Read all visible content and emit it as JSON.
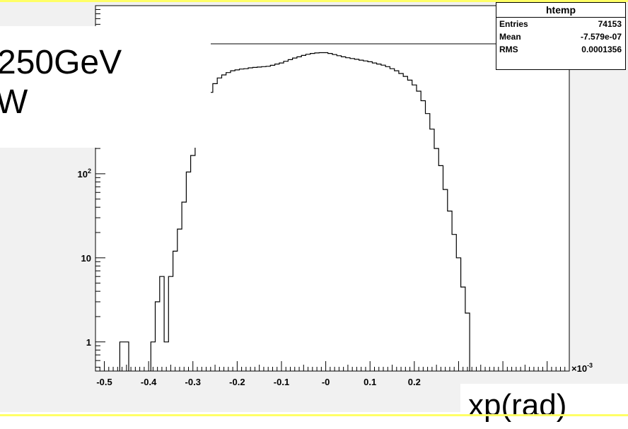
{
  "slide": {
    "energy_line1": "250GeV",
    "energy_line2": "W",
    "xaxis_caption": "xp(rad)"
  },
  "stats_box": {
    "title": "htemp",
    "rows": [
      {
        "label": "Entries",
        "value": "74153"
      },
      {
        "label": "Mean",
        "value": "-7.579e-07"
      },
      {
        "label": "RMS",
        "value": "0.0001356"
      }
    ]
  },
  "chart_data": {
    "type": "histogram",
    "title": "",
    "xlabel": "xp(rad)",
    "ylabel": "",
    "x_multiplier": "×10",
    "x_multiplier_exp": "-3",
    "x_tick_labels": [
      "-0.5",
      "-0.4",
      "-0.3",
      "-0.2",
      "-0.1",
      "-0",
      "0.1",
      "0.2"
    ],
    "x_ticks": [
      -0.5,
      -0.4,
      -0.3,
      -0.2,
      -0.1,
      0,
      0.1,
      0.2
    ],
    "xlim": [
      -0.52,
      0.55
    ],
    "y_scale": "log",
    "ylim": [
      0.45,
      10000
    ],
    "y_ticks": [
      {
        "value": 1,
        "base": "1",
        "exp": ""
      },
      {
        "value": 10,
        "base": "10",
        "exp": ""
      },
      {
        "value": 100,
        "base": "10",
        "exp": "2"
      }
    ],
    "grid": false,
    "legend": "none",
    "line_color": "#000000",
    "bin_width": 0.01,
    "bins": [
      {
        "x": -0.46,
        "y": 1
      },
      {
        "x": -0.45,
        "y": 1
      },
      {
        "x": -0.39,
        "y": 1
      },
      {
        "x": -0.38,
        "y": 3
      },
      {
        "x": -0.37,
        "y": 6
      },
      {
        "x": -0.36,
        "y": 1
      },
      {
        "x": -0.35,
        "y": 6
      },
      {
        "x": -0.34,
        "y": 12
      },
      {
        "x": -0.33,
        "y": 22
      },
      {
        "x": -0.32,
        "y": 46
      },
      {
        "x": -0.31,
        "y": 105
      },
      {
        "x": -0.3,
        "y": 165
      },
      {
        "x": -0.29,
        "y": 270
      },
      {
        "x": -0.28,
        "y": 420
      },
      {
        "x": -0.27,
        "y": 650
      },
      {
        "x": -0.26,
        "y": 930
      },
      {
        "x": -0.25,
        "y": 1180
      },
      {
        "x": -0.24,
        "y": 1380
      },
      {
        "x": -0.23,
        "y": 1500
      },
      {
        "x": -0.22,
        "y": 1600
      },
      {
        "x": -0.21,
        "y": 1680
      },
      {
        "x": -0.2,
        "y": 1720
      },
      {
        "x": -0.19,
        "y": 1760
      },
      {
        "x": -0.18,
        "y": 1780
      },
      {
        "x": -0.17,
        "y": 1820
      },
      {
        "x": -0.16,
        "y": 1840
      },
      {
        "x": -0.15,
        "y": 1860
      },
      {
        "x": -0.14,
        "y": 1880
      },
      {
        "x": -0.13,
        "y": 1900
      },
      {
        "x": -0.12,
        "y": 1950
      },
      {
        "x": -0.11,
        "y": 2020
      },
      {
        "x": -0.1,
        "y": 2080
      },
      {
        "x": -0.09,
        "y": 2180
      },
      {
        "x": -0.08,
        "y": 2280
      },
      {
        "x": -0.07,
        "y": 2380
      },
      {
        "x": -0.06,
        "y": 2460
      },
      {
        "x": -0.05,
        "y": 2560
      },
      {
        "x": -0.04,
        "y": 2640
      },
      {
        "x": -0.03,
        "y": 2700
      },
      {
        "x": -0.02,
        "y": 2740
      },
      {
        "x": -0.01,
        "y": 2760
      },
      {
        "x": 0.0,
        "y": 2760
      },
      {
        "x": 0.01,
        "y": 2700
      },
      {
        "x": 0.02,
        "y": 2620
      },
      {
        "x": 0.03,
        "y": 2540
      },
      {
        "x": 0.04,
        "y": 2460
      },
      {
        "x": 0.05,
        "y": 2400
      },
      {
        "x": 0.06,
        "y": 2350
      },
      {
        "x": 0.07,
        "y": 2300
      },
      {
        "x": 0.08,
        "y": 2250
      },
      {
        "x": 0.09,
        "y": 2200
      },
      {
        "x": 0.1,
        "y": 2150
      },
      {
        "x": 0.11,
        "y": 2080
      },
      {
        "x": 0.12,
        "y": 2020
      },
      {
        "x": 0.13,
        "y": 1960
      },
      {
        "x": 0.14,
        "y": 1880
      },
      {
        "x": 0.15,
        "y": 1780
      },
      {
        "x": 0.16,
        "y": 1680
      },
      {
        "x": 0.17,
        "y": 1560
      },
      {
        "x": 0.18,
        "y": 1440
      },
      {
        "x": 0.19,
        "y": 1300
      },
      {
        "x": 0.2,
        "y": 1140
      },
      {
        "x": 0.21,
        "y": 960
      },
      {
        "x": 0.22,
        "y": 740
      },
      {
        "x": 0.23,
        "y": 520
      },
      {
        "x": 0.24,
        "y": 340
      },
      {
        "x": 0.25,
        "y": 200
      },
      {
        "x": 0.26,
        "y": 125
      },
      {
        "x": 0.27,
        "y": 65
      },
      {
        "x": 0.28,
        "y": 36
      },
      {
        "x": 0.29,
        "y": 19
      },
      {
        "x": 0.3,
        "y": 10
      },
      {
        "x": 0.31,
        "y": 4.5
      },
      {
        "x": 0.32,
        "y": 2.2
      }
    ]
  }
}
